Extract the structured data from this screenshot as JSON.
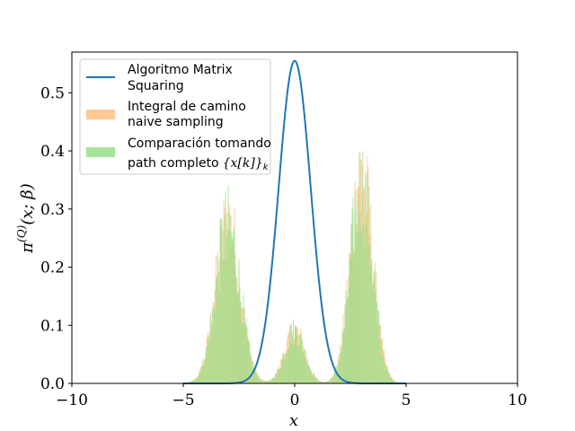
{
  "chart_data": {
    "type": "histogram-line",
    "xlabel": "x",
    "ylabel": "π^(Q)(x;β)",
    "xlim": [
      -10,
      10
    ],
    "ylim": [
      0,
      0.57
    ],
    "xticks": [
      -10,
      -5,
      0,
      5,
      10
    ],
    "xtick_labels": [
      "−10",
      "−5",
      "0",
      "5",
      "10"
    ],
    "yticks": [
      0.0,
      0.1,
      0.2,
      0.3,
      0.4,
      0.5
    ],
    "ytick_labels": [
      "0.0",
      "0.1",
      "0.2",
      "0.3",
      "0.4",
      "0.5"
    ],
    "grid": false,
    "legend_position": "top-left",
    "series": [
      {
        "name": "Algoritmo Matrix Squaring",
        "kind": "line",
        "color": "#1f77b4",
        "description": "Gaussian-like curve peaked at x=0",
        "peak_x": 0,
        "peak_y": 0.555,
        "sigma": 0.72
      },
      {
        "name": "Integral de camino naive sampling",
        "kind": "histogram",
        "color": "#ffbb78",
        "alpha": 0.7,
        "modes": [
          {
            "center": -3.0,
            "height": 0.28,
            "width": 0.55
          },
          {
            "center": 0.0,
            "height": 0.09,
            "width": 0.45
          },
          {
            "center": 3.0,
            "height": 0.36,
            "width": 0.5
          }
        ],
        "max_y": 0.445,
        "x_range": [
          -5.0,
          5.0
        ]
      },
      {
        "name": "Comparación tomando path completo {x[k]}_k",
        "kind": "histogram",
        "color": "#98df8a",
        "alpha": 0.75,
        "modes": [
          {
            "center": -3.0,
            "height": 0.27,
            "width": 0.55
          },
          {
            "center": 0.0,
            "height": 0.09,
            "width": 0.45
          },
          {
            "center": 3.0,
            "height": 0.34,
            "width": 0.5
          }
        ],
        "max_y": 0.41,
        "x_range": [
          -5.0,
          5.0
        ]
      }
    ]
  },
  "legend": {
    "items": [
      {
        "line1": "Algoritmo Matrix",
        "line2": "Squaring"
      },
      {
        "line1": "Integral de camino",
        "line2": "naive sampling"
      },
      {
        "line1": "Comparación tomando",
        "line2": "path completo"
      }
    ],
    "path_math": "{x[k]}",
    "path_sub": "k"
  }
}
